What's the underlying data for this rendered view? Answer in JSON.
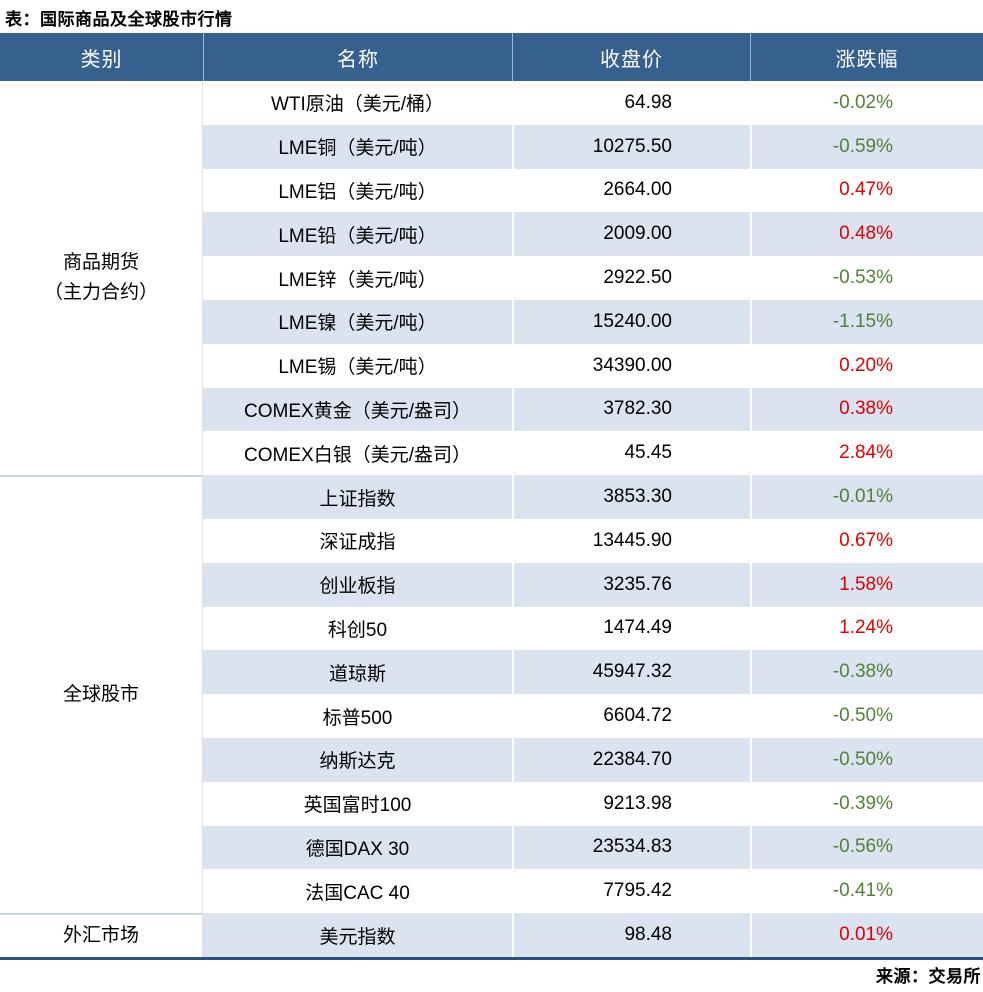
{
  "title": "表：国际商品及全球股市行情",
  "source": "来源：交易所",
  "colors": {
    "header_bg": "#36618F",
    "header_text": "#FFFFFF",
    "stripe_bg": "#DAE3EF",
    "up_red": "#E00000",
    "down_green": "#538135",
    "bottom_border": "#2E507C",
    "group_divider": "#C9D5E3"
  },
  "table": {
    "headers": [
      "类别",
      "名称",
      "收盘价",
      "涨跌幅"
    ],
    "groups": [
      {
        "category_lines": [
          "商品期货",
          "（主力合约）"
        ],
        "rows": [
          {
            "name": "WTI原油（美元/桶）",
            "close": "64.98",
            "change": "-0.02%"
          },
          {
            "name": "LME铜（美元/吨）",
            "close": "10275.50",
            "change": "-0.59%"
          },
          {
            "name": "LME铝（美元/吨）",
            "close": "2664.00",
            "change": "0.47%"
          },
          {
            "name": "LME铅（美元/吨）",
            "close": "2009.00",
            "change": "0.48%"
          },
          {
            "name": "LME锌（美元/吨）",
            "close": "2922.50",
            "change": "-0.53%"
          },
          {
            "name": "LME镍（美元/吨）",
            "close": "15240.00",
            "change": "-1.15%"
          },
          {
            "name": "LME锡（美元/吨）",
            "close": "34390.00",
            "change": "0.20%"
          },
          {
            "name": "COMEX黄金（美元/盎司）",
            "close": "3782.30",
            "change": "0.38%"
          },
          {
            "name": "COMEX白银（美元/盎司）",
            "close": "45.45",
            "change": "2.84%"
          }
        ]
      },
      {
        "category_lines": [
          "全球股市"
        ],
        "rows": [
          {
            "name": "上证指数",
            "close": "3853.30",
            "change": "-0.01%"
          },
          {
            "name": "深证成指",
            "close": "13445.90",
            "change": "0.67%"
          },
          {
            "name": "创业板指",
            "close": "3235.76",
            "change": "1.58%"
          },
          {
            "name": "科创50",
            "close": "1474.49",
            "change": "1.24%"
          },
          {
            "name": "道琼斯",
            "close": "45947.32",
            "change": "-0.38%"
          },
          {
            "name": "标普500",
            "close": "6604.72",
            "change": "-0.50%"
          },
          {
            "name": "纳斯达克",
            "close": "22384.70",
            "change": "-0.50%"
          },
          {
            "name": "英国富时100",
            "close": "9213.98",
            "change": "-0.39%"
          },
          {
            "name": "德国DAX 30",
            "close": "23534.83",
            "change": "-0.56%"
          },
          {
            "name": "法国CAC 40",
            "close": "7795.42",
            "change": "-0.41%"
          }
        ]
      },
      {
        "category_lines": [
          "外汇市场"
        ],
        "rows": [
          {
            "name": "美元指数",
            "close": "98.48",
            "change": "0.01%"
          }
        ]
      }
    ]
  },
  "chart_data": {
    "type": "table",
    "title": "国际商品及全球股市行情",
    "columns": [
      "类别",
      "名称",
      "收盘价",
      "涨跌幅"
    ],
    "rows": [
      [
        "商品期货（主力合约）",
        "WTI原油（美元/桶）",
        64.98,
        "-0.02%"
      ],
      [
        "商品期货（主力合约）",
        "LME铜（美元/吨）",
        10275.5,
        "-0.59%"
      ],
      [
        "商品期货（主力合约）",
        "LME铝（美元/吨）",
        2664.0,
        "0.47%"
      ],
      [
        "商品期货（主力合约）",
        "LME铅（美元/吨）",
        2009.0,
        "0.48%"
      ],
      [
        "商品期货（主力合约）",
        "LME锌（美元/吨）",
        2922.5,
        "-0.53%"
      ],
      [
        "商品期货（主力合约）",
        "LME镍（美元/吨）",
        15240.0,
        "-1.15%"
      ],
      [
        "商品期货（主力合约）",
        "LME锡（美元/吨）",
        34390.0,
        "0.20%"
      ],
      [
        "商品期货（主力合约）",
        "COMEX黄金（美元/盎司）",
        3782.3,
        "0.38%"
      ],
      [
        "商品期货（主力合约）",
        "COMEX白银（美元/盎司）",
        45.45,
        "2.84%"
      ],
      [
        "全球股市",
        "上证指数",
        3853.3,
        "-0.01%"
      ],
      [
        "全球股市",
        "深证成指",
        13445.9,
        "0.67%"
      ],
      [
        "全球股市",
        "创业板指",
        3235.76,
        "1.58%"
      ],
      [
        "全球股市",
        "科创50",
        1474.49,
        "1.24%"
      ],
      [
        "全球股市",
        "道琼斯",
        45947.32,
        "-0.38%"
      ],
      [
        "全球股市",
        "标普500",
        6604.72,
        "-0.50%"
      ],
      [
        "全球股市",
        "纳斯达克",
        22384.7,
        "-0.50%"
      ],
      [
        "全球股市",
        "英国富时100",
        9213.98,
        "-0.39%"
      ],
      [
        "全球股市",
        "德国DAX 30",
        23534.83,
        "-0.56%"
      ],
      [
        "全球股市",
        "法国CAC 40",
        7795.42,
        "-0.41%"
      ],
      [
        "外汇市场",
        "美元指数",
        98.48,
        "0.01%"
      ]
    ],
    "legend_position": "none",
    "grid": false,
    "color_coding": {
      "positive_change": "#E00000",
      "negative_change": "#538135"
    },
    "source": "来源：交易所"
  }
}
